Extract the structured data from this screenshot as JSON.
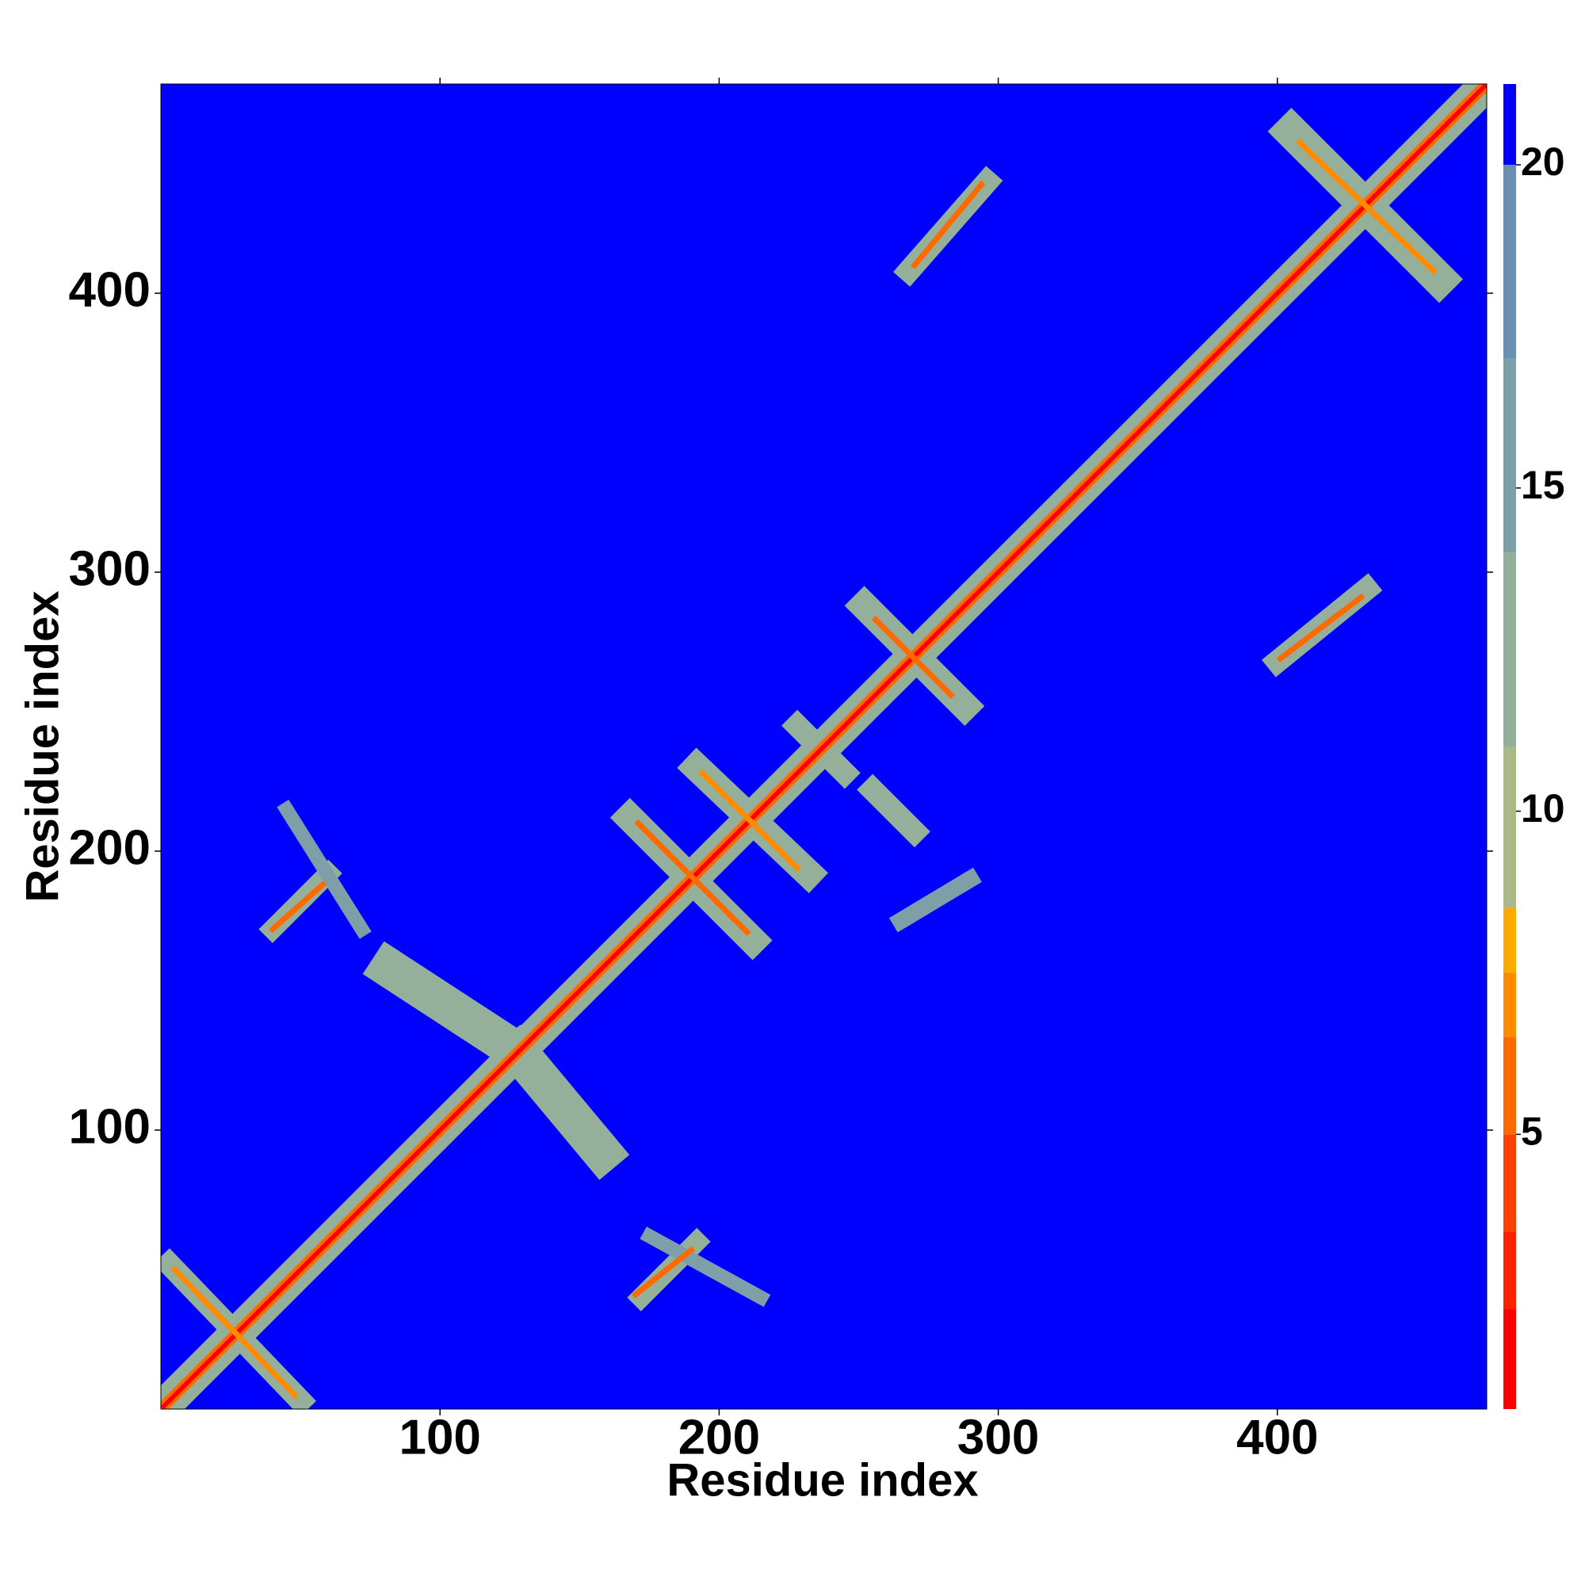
{
  "chart_data": {
    "type": "contact-map",
    "xlabel": "Residue index",
    "ylabel": "Residue index",
    "xlim": [
      0,
      475
    ],
    "ylim": [
      0,
      475
    ],
    "xticks": [
      100,
      200,
      300,
      400
    ],
    "yticks": [
      100,
      200,
      300,
      400
    ],
    "zlim": [
      0.75,
      21.25
    ],
    "colorbar_ticks": [
      5,
      10,
      15,
      20
    ],
    "colorbands": [
      {
        "from": 0.75,
        "color": "#ff0000"
      },
      {
        "from": 2.3,
        "color": "#ff2000"
      },
      {
        "from": 3.5,
        "color": "#ff4000"
      },
      {
        "from": 5,
        "color": "#ff6a00"
      },
      {
        "from": 6.5,
        "color": "#ff8c00"
      },
      {
        "from": 7.5,
        "color": "#ffaa00"
      },
      {
        "from": 8.5,
        "color": "#a9b98a"
      },
      {
        "from": 11,
        "color": "#94b09a"
      },
      {
        "from": 14,
        "color": "#7f9fa8"
      },
      {
        "from": 17,
        "color": "#6a8fb2"
      },
      {
        "from": 20,
        "color": "#0000ff"
      }
    ],
    "segments": [
      {
        "x": [
          1,
          475
        ],
        "y": [
          1,
          475
        ],
        "value": 12,
        "width": 12
      },
      {
        "x": [
          82,
          128
        ],
        "y": [
          158,
          128
        ],
        "value": 12,
        "width": 14
      },
      {
        "x": [
          128,
          158
        ],
        "y": [
          128,
          92
        ],
        "value": 12,
        "width": 14
      },
      {
        "x": [
          3,
          50
        ],
        "y": [
          52,
          3
        ],
        "value": 13,
        "width": 8
      },
      {
        "x": [
          40,
          60
        ],
        "y": [
          172,
          192
        ],
        "value": 13,
        "width": 7
      },
      {
        "x": [
          45,
          72
        ],
        "y": [
          215,
          172
        ],
        "value": 14,
        "width": 5
      },
      {
        "x": [
          172,
          192
        ],
        "y": [
          40,
          60
        ],
        "value": 13,
        "width": 7
      },
      {
        "x": [
          175,
          215
        ],
        "y": [
          62,
          40
        ],
        "value": 14,
        "width": 5
      },
      {
        "x": [
          168,
          212
        ],
        "y": [
          212,
          168
        ],
        "value": 12,
        "width": 10
      },
      {
        "x": [
          192,
          232
        ],
        "y": [
          230,
          192
        ],
        "value": 12,
        "width": 10
      },
      {
        "x": [
          252,
          288
        ],
        "y": [
          288,
          252
        ],
        "value": 12,
        "width": 10
      },
      {
        "x": [
          228,
          245
        ],
        "y": [
          245,
          228
        ],
        "value": 13,
        "width": 8
      },
      {
        "x": [
          255,
          270
        ],
        "y": [
          222,
          207
        ],
        "value": 13,
        "width": 8
      },
      {
        "x": [
          265,
          290
        ],
        "y": [
          175,
          190
        ],
        "value": 14,
        "width": 6
      },
      {
        "x": [
          405,
          458
        ],
        "y": [
          458,
          405
        ],
        "value": 12,
        "width": 12
      },
      {
        "x": [
          268,
          296
        ],
        "y": [
          408,
          440
        ],
        "value": 13,
        "width": 8
      },
      {
        "x": [
          400,
          432
        ],
        "y": [
          268,
          294
        ],
        "value": 13,
        "width": 8
      },
      {
        "x": [
          1,
          475
        ],
        "y": [
          1,
          475
        ],
        "value": 6,
        "width": 4
      },
      {
        "x": [
          1,
          475
        ],
        "y": [
          1,
          475
        ],
        "value": 1,
        "width": 1.6
      },
      {
        "x": [
          5,
          48
        ],
        "y": [
          50,
          5
        ],
        "value": 7,
        "width": 2
      },
      {
        "x": [
          40,
          58
        ],
        "y": [
          172,
          188
        ],
        "value": 6,
        "width": 2
      },
      {
        "x": [
          170,
          190
        ],
        "y": [
          41,
          57
        ],
        "value": 6,
        "width": 2
      },
      {
        "x": [
          171,
          210
        ],
        "y": [
          210,
          171
        ],
        "value": 6,
        "width": 2
      },
      {
        "x": [
          194,
          228
        ],
        "y": [
          228,
          194
        ],
        "value": 7,
        "width": 2
      },
      {
        "x": [
          256,
          283
        ],
        "y": [
          283,
          256
        ],
        "value": 6,
        "width": 2
      },
      {
        "x": [
          408,
          456
        ],
        "y": [
          454,
          408
        ],
        "value": 7,
        "width": 2
      },
      {
        "x": [
          270,
          294
        ],
        "y": [
          410,
          439
        ],
        "value": 6,
        "width": 2
      },
      {
        "x": [
          401,
          430
        ],
        "y": [
          269,
          291
        ],
        "value": 6,
        "width": 2
      }
    ]
  }
}
